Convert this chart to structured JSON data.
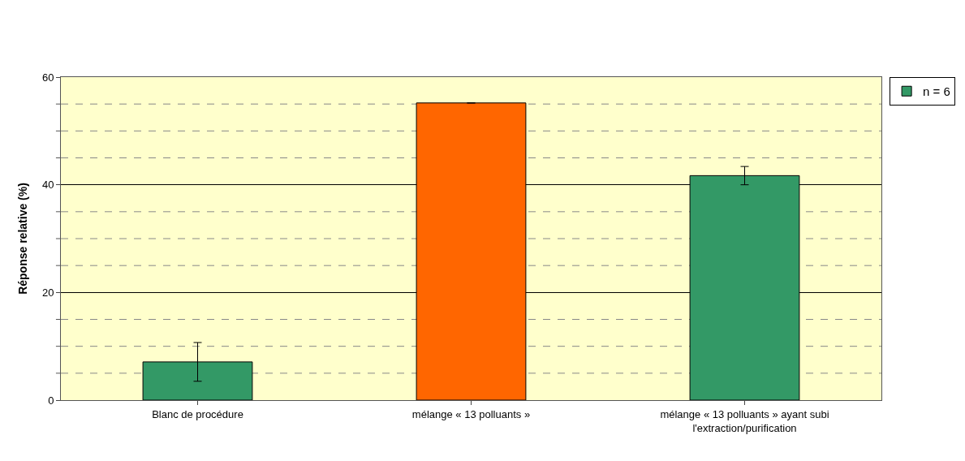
{
  "chart_data": {
    "type": "bar",
    "ylabel": "Réponse relative (%)",
    "categories": [
      "Blanc de procédure",
      "mélange « 13 polluants »",
      "mélange « 13 polluants » ayant subi l'extraction/purification"
    ],
    "series": [
      {
        "name": "n = 6",
        "colors": [
          "#339966",
          "#ff6600",
          "#339966"
        ],
        "values": [
          7.1,
          55.2,
          41.7
        ],
        "errors": [
          3.6,
          null,
          1.7
        ]
      }
    ],
    "ylim": [
      0,
      60
    ],
    "yticks": [
      0,
      {
        "value": 5,
        "label": null
      },
      {
        "value": 10,
        "label": null
      },
      {
        "value": 15,
        "label": null
      },
      20,
      {
        "value": 25,
        "label": null
      },
      {
        "value": 30,
        "label": null
      },
      {
        "value": 35,
        "label": null
      },
      40,
      {
        "value": 45,
        "label": null
      },
      {
        "value": 50,
        "label": null
      },
      {
        "value": 55,
        "label": null
      },
      60
    ],
    "grid": "y",
    "legend": "top right"
  }
}
